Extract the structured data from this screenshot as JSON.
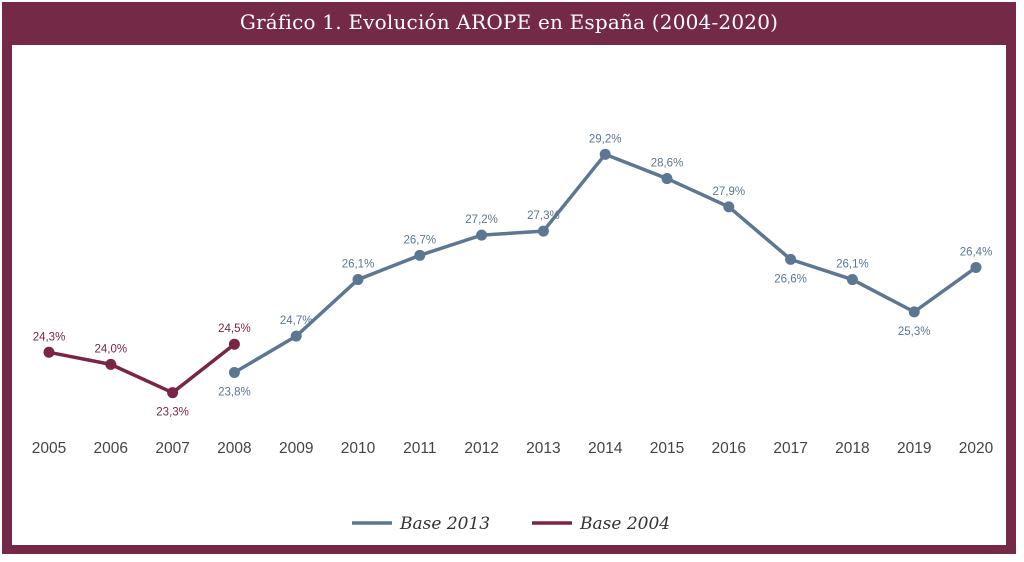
{
  "title": "Gráfico 1. Evolución AROPE en España (2004-2020)",
  "colors": {
    "frame": "#742a47",
    "base2013": "#5b7792",
    "base2004": "#7a2547"
  },
  "chart_data": {
    "type": "line",
    "title": "Gráfico 1. Evolución AROPE en España (2004-2020)",
    "xlabel": "",
    "ylabel": "",
    "categories": [
      "2005",
      "2006",
      "2007",
      "2008",
      "2009",
      "2010",
      "2011",
      "2012",
      "2013",
      "2014",
      "2015",
      "2016",
      "2017",
      "2018",
      "2019",
      "2020"
    ],
    "ylim": [
      22.5,
      30.0
    ],
    "grid": false,
    "legend": "bottom-center",
    "series": [
      {
        "name": "Base 2013",
        "color": "#5b7792",
        "x": [
          "2008",
          "2009",
          "2010",
          "2011",
          "2012",
          "2013",
          "2014",
          "2015",
          "2016",
          "2017",
          "2018",
          "2019",
          "2020"
        ],
        "values": [
          23.8,
          24.7,
          26.1,
          26.7,
          27.2,
          27.3,
          29.2,
          28.6,
          27.9,
          26.6,
          26.1,
          25.3,
          26.4
        ],
        "labels": [
          "23,8%",
          "24,7%",
          "26,1%",
          "26,7%",
          "27,2%",
          "27,3%",
          "29,2%",
          "28,6%",
          "27,9%",
          "26,6%",
          "26,1%",
          "25,3%",
          "26,4%"
        ],
        "label_pos": [
          "below",
          "above",
          "above",
          "above",
          "above",
          "above",
          "above",
          "above",
          "above",
          "below",
          "above",
          "below",
          "above"
        ]
      },
      {
        "name": "Base 2004",
        "color": "#7a2547",
        "x": [
          "2005",
          "2006",
          "2007",
          "2008"
        ],
        "values": [
          24.3,
          24.0,
          23.3,
          24.5
        ],
        "labels": [
          "24,3%",
          "24,0%",
          "23,3%",
          "24,5%"
        ],
        "label_pos": [
          "above",
          "above",
          "below",
          "above"
        ]
      }
    ]
  }
}
